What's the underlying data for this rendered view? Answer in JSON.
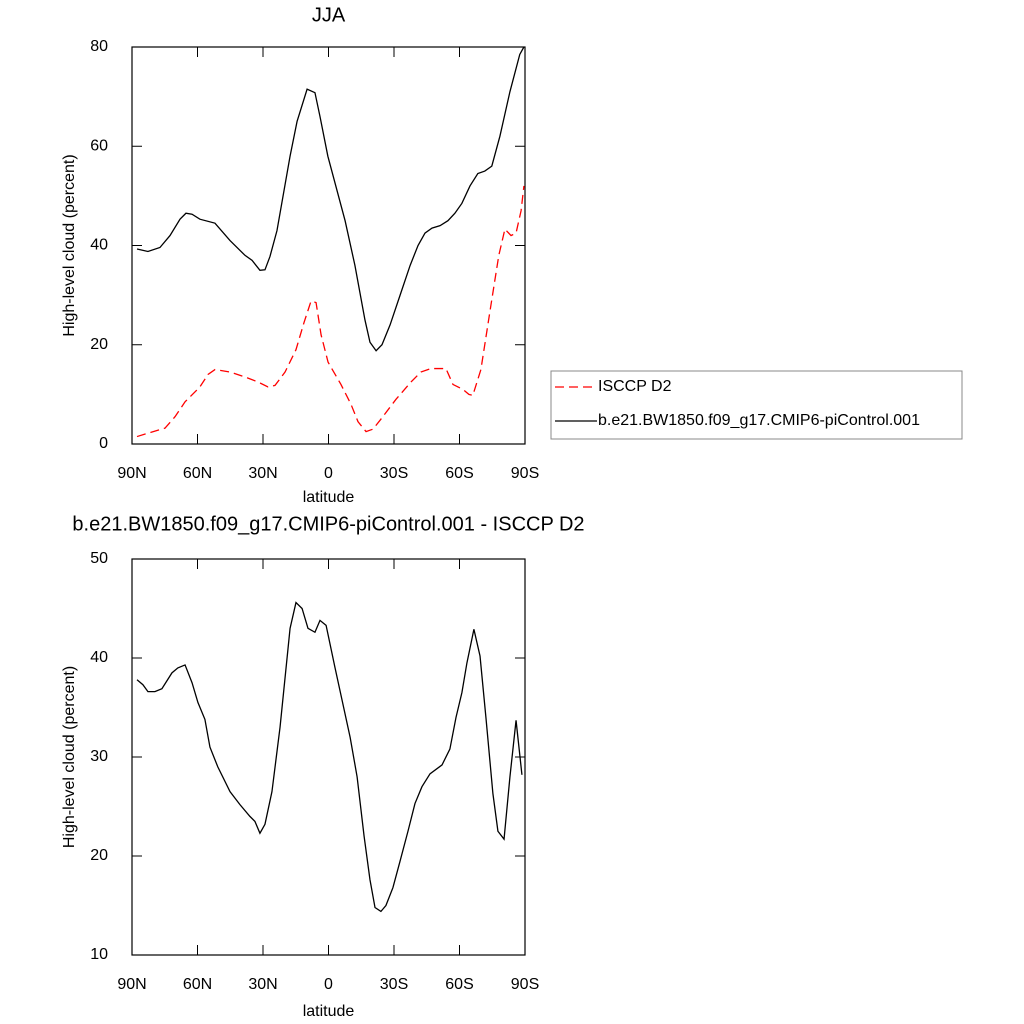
{
  "chart_data": [
    {
      "type": "line",
      "title": "JJA",
      "xlabel": "latitude",
      "ylabel": "High-level cloud (percent)",
      "xlim": [
        90,
        -90
      ],
      "ylim": [
        0,
        80
      ],
      "xticks": [
        {
          "value": 90,
          "label": "90N"
        },
        {
          "value": 60,
          "label": "60N"
        },
        {
          "value": 30,
          "label": "30N"
        },
        0,
        {
          "value": -30,
          "label": "30S"
        },
        {
          "value": -60,
          "label": "60S"
        },
        {
          "value": -90,
          "label": "90S"
        }
      ],
      "yticks": [
        0,
        20,
        40,
        60,
        80
      ],
      "legend": "right",
      "series": [
        {
          "name": "ISCCP D2",
          "color": "#ff0000",
          "line_style": "dashed",
          "x": [
            87.7,
            81.8,
            74.9,
            70.3,
            65.7,
            58.9,
            55.2,
            52,
            45.1,
            38.2,
            32.3,
            27.7,
            24.5,
            19.9,
            14.9,
            11.2,
            8,
            5.7,
            3.4,
            0.2,
            -5.7,
            -10.3,
            -13.5,
            -17.2,
            -20.4,
            -24,
            -30.9,
            -37.8,
            -42.3,
            -46.9,
            -53.8,
            -57,
            -61.6,
            -64.3,
            -66.1,
            -69.8,
            -74.4,
            -78,
            -80.8,
            -83.6,
            -85.9,
            -88.2,
            -89.5
          ],
          "values": [
            1.5,
            2.3,
            3.2,
            5.5,
            8.5,
            11.5,
            14,
            15,
            14.5,
            13.5,
            12.5,
            11.5,
            11.8,
            14.5,
            19,
            24.5,
            28.8,
            28.5,
            22,
            16.5,
            12,
            8,
            4.5,
            2.5,
            3,
            5,
            9,
            12.5,
            14.5,
            15.2,
            15.2,
            12,
            11,
            10,
            9.8,
            15,
            28,
            38,
            43.3,
            42,
            42.5,
            47,
            52
          ]
        },
        {
          "name": "b.e21.BW1850.f09_g17.CMIP6-piControl.001",
          "color": "#000000",
          "line_style": "solid",
          "x": [
            87.7,
            82.7,
            77.2,
            72.6,
            68,
            65.3,
            62.5,
            58.9,
            52,
            45.1,
            38.2,
            35,
            31.4,
            29.1,
            26.8,
            23.6,
            17.6,
            14.4,
            9.8,
            6.2,
            3.9,
            0.3,
            -7.6,
            -12.1,
            -16.7,
            -19,
            -21.8,
            -24.5,
            -28.2,
            -32.8,
            -37.4,
            -41,
            -44.2,
            -47.4,
            -51.1,
            -54.7,
            -57.9,
            -61.1,
            -64.8,
            -68.4,
            -71.6,
            -74.8,
            -78.5,
            -83.1,
            -87.6,
            -89.5
          ],
          "values": [
            39.3,
            38.8,
            39.6,
            42,
            45.3,
            46.5,
            46.3,
            45.3,
            44.5,
            41,
            38,
            37,
            35,
            35.1,
            37.8,
            43,
            58,
            65,
            71.5,
            70.8,
            66,
            58,
            45,
            36,
            25,
            20.5,
            18.8,
            20,
            24,
            30,
            36,
            40,
            42.5,
            43.5,
            44,
            45,
            46.5,
            48.5,
            52,
            54.5,
            55,
            56,
            62,
            71,
            78.5,
            80
          ]
        }
      ]
    },
    {
      "type": "line",
      "title": "b.e21.BW1850.f09_g17.CMIP6-piControl.001 - ISCCP D2",
      "xlabel": "latitude",
      "ylabel": "High-level cloud (percent)",
      "xlim": [
        90,
        -90
      ],
      "ylim": [
        10,
        50
      ],
      "xticks": [
        {
          "value": 90,
          "label": "90N"
        },
        {
          "value": 60,
          "label": "60N"
        },
        {
          "value": 30,
          "label": "30N"
        },
        0,
        {
          "value": -30,
          "label": "30S"
        },
        {
          "value": -60,
          "label": "60S"
        },
        {
          "value": -90,
          "label": "90S"
        }
      ],
      "yticks": [
        10,
        20,
        30,
        40,
        50
      ],
      "series": [
        {
          "color": "#000000",
          "line_style": "solid",
          "x": [
            87.7,
            85,
            82.7,
            79.5,
            76.3,
            71.7,
            69,
            65.7,
            62.5,
            59.8,
            56.6,
            54.3,
            50.7,
            45.1,
            40.6,
            36,
            33.7,
            31.4,
            29.1,
            25.9,
            22.2,
            17.6,
            14.9,
            12.1,
            9.4,
            6.2,
            3.9,
            1.1,
            -3,
            -9.9,
            -13.1,
            -16.3,
            -19,
            -21.3,
            -24,
            -26.3,
            -29.5,
            -32.8,
            -36.4,
            -39.6,
            -42.8,
            -46.5,
            -52,
            -55.6,
            -58.4,
            -61.1,
            -63.4,
            -66.6,
            -69.4,
            -72.1,
            -75.3,
            -77.6,
            -80.4,
            -83.1,
            -85.9,
            -88.6
          ],
          "values": [
            37.8,
            37.3,
            36.6,
            36.6,
            36.9,
            38.5,
            39,
            39.3,
            37.5,
            35.5,
            33.8,
            31,
            29,
            26.5,
            25.2,
            24,
            23.5,
            22.3,
            23.2,
            26.5,
            33,
            43,
            45.6,
            45,
            43,
            42.6,
            43.8,
            43.3,
            39,
            32,
            28,
            22,
            17.6,
            14.8,
            14.4,
            15,
            16.8,
            19.5,
            22.5,
            25.3,
            27,
            28.3,
            29.2,
            30.8,
            34,
            36.5,
            39.5,
            42.9,
            40.2,
            34,
            26.3,
            22.5,
            21.7,
            28,
            33.7,
            28.2
          ]
        }
      ]
    }
  ]
}
